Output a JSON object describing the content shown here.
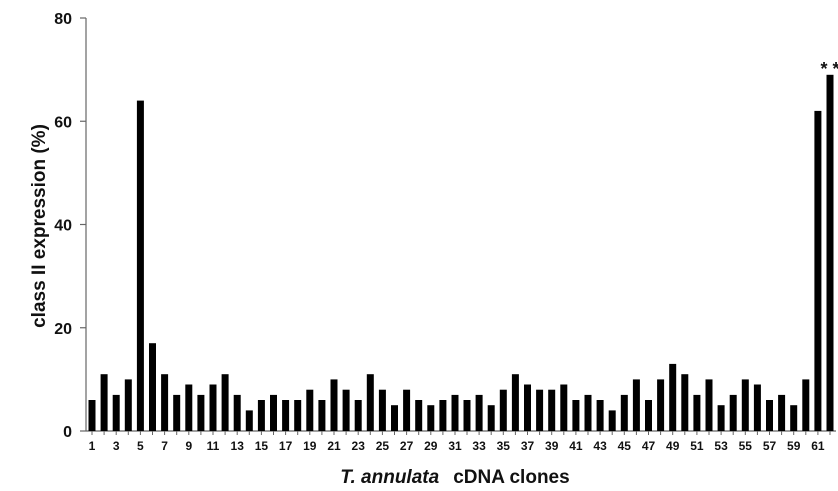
{
  "chart_data": {
    "type": "bar",
    "ylabel": "class II expression (%)",
    "xlabel_italic": "T. annulata",
    "xlabel_rest": "cDNA clones",
    "ylim": [
      0,
      80
    ],
    "yticks": [
      0,
      20,
      40,
      60,
      80
    ],
    "xtick_labels": [
      "1",
      "3",
      "5",
      "7",
      "9",
      "11",
      "13",
      "15",
      "17",
      "19",
      "21",
      "23",
      "25",
      "27",
      "29",
      "31",
      "33",
      "35",
      "37",
      "39",
      "41",
      "43",
      "45",
      "47",
      "49",
      "51",
      "53",
      "55",
      "57",
      "59",
      "61"
    ],
    "categories": [
      "1",
      "2",
      "3",
      "4",
      "5",
      "6",
      "7",
      "8",
      "9",
      "10",
      "11",
      "12",
      "13",
      "14",
      "15",
      "16",
      "17",
      "18",
      "19",
      "20",
      "21",
      "22",
      "23",
      "24",
      "25",
      "26",
      "27",
      "28",
      "29",
      "30",
      "31",
      "32",
      "33",
      "34",
      "35",
      "36",
      "37",
      "38",
      "39",
      "40",
      "41",
      "42",
      "43",
      "44",
      "45",
      "46",
      "47",
      "48",
      "49",
      "50",
      "51",
      "52",
      "53",
      "54",
      "55",
      "56",
      "57",
      "58",
      "59",
      "60",
      "61",
      "62"
    ],
    "values": [
      6,
      11,
      7,
      10,
      64,
      17,
      11,
      7,
      9,
      7,
      9,
      11,
      7,
      4,
      6,
      7,
      6,
      6,
      8,
      6,
      10,
      8,
      6,
      11,
      8,
      5,
      8,
      6,
      5,
      6,
      7,
      6,
      7,
      5,
      8,
      11,
      9,
      8,
      8,
      9,
      6,
      7,
      6,
      4,
      7,
      10,
      6,
      10,
      13,
      11,
      7,
      10,
      5,
      7,
      10,
      9,
      6,
      7,
      5,
      10,
      62,
      69
    ],
    "annotation": "* *",
    "bar_color": "#000000",
    "grid": false
  }
}
